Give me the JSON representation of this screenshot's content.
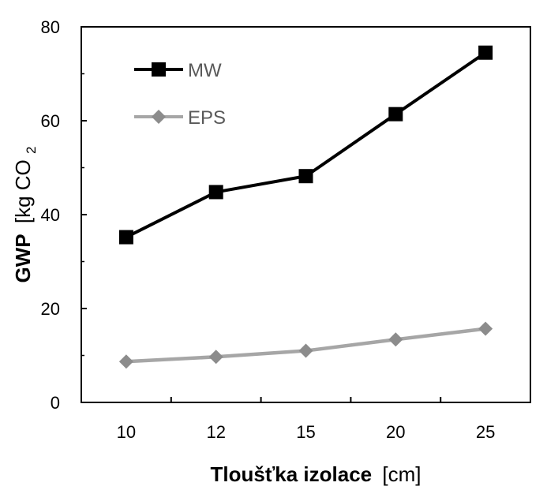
{
  "chart_data": {
    "type": "line",
    "categories": [
      "10",
      "12",
      "15",
      "20",
      "25"
    ],
    "series": [
      {
        "name": "MW",
        "values": [
          35.2,
          44.8,
          48.2,
          61.4,
          74.5
        ],
        "color": "#000000",
        "marker": "square"
      },
      {
        "name": "EPS",
        "values": [
          8.7,
          9.7,
          11.0,
          13.4,
          15.7
        ],
        "color": "#a6a6a6",
        "marker": "diamond"
      }
    ],
    "title": "",
    "xlabel_bold": "Tloušťka izolace",
    "xlabel_rest": "[cm]",
    "ylabel_bold": "GWP",
    "ylabel_rest": "[kg CO",
    "ylabel_sub": "2",
    "ylim": [
      0,
      80
    ],
    "yticks": [
      0,
      20,
      40,
      60,
      80
    ],
    "grid": false,
    "legend_position": "top-left"
  }
}
